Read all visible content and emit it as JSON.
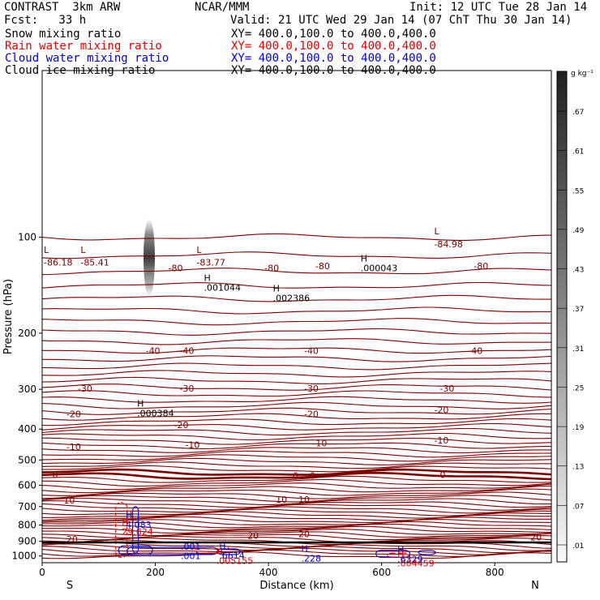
{
  "header": {
    "model": "CONTRAST  3km ARW",
    "center": "NCAR/MMM",
    "init": "Init: 12 UTC Tue 28 Jan 14",
    "fcst": "Fcst:   33 h",
    "valid": "Valid: 21 UTC Wed 29 Jan 14 (07 ChT Thu 30 Jan 14)",
    "fields": [
      {
        "name": "Snow mixing ratio",
        "xy": "XY= 400.0,100.0 to 400.0,400.0",
        "color": "#000000"
      },
      {
        "name": "Rain water mixing ratio",
        "xy": "XY= 400.0,100.0 to 400.0,400.0",
        "color": "#e00000"
      },
      {
        "name": "Cloud water mixing ratio",
        "xy": "XY= 400.0,100.0 to 400.0,400.0",
        "color": "#0000d0"
      },
      {
        "name": "Cloud ice mixing ratio",
        "xy": "XY= 400.0,100.0 to 400.0,400.0",
        "color": "#000000"
      }
    ]
  },
  "chart_data": {
    "type": "cross-section",
    "xlabel": "Distance (km)",
    "ylabel": "Pressure (hPa)",
    "xlim": [
      0,
      900
    ],
    "ylim": [
      1050,
      30
    ],
    "y_scale": "log",
    "xticks": [
      0,
      200,
      400,
      600,
      800
    ],
    "yticks": [
      100,
      200,
      300,
      400,
      500,
      600,
      700,
      800,
      900,
      1000
    ],
    "left_end_label": "S",
    "right_end_label": "N",
    "colorbar": {
      "unit": "g kg⁻¹",
      "ticks": [
        ".67",
        ".61",
        ".55",
        ".49",
        ".43",
        ".37",
        ".31",
        ".25",
        ".19",
        ".13",
        ".07",
        ".01"
      ]
    },
    "colors": {
      "isotherm": "#7a0000",
      "rain": "#e00000",
      "cloud_water": "#0000d0"
    },
    "isotherm_labels": [
      {
        "x": 0,
        "p": 120,
        "text": "-86.18"
      },
      {
        "x": 65,
        "p": 120,
        "text": "-85.41"
      },
      {
        "x": 270,
        "p": 120,
        "text": "-83.77"
      },
      {
        "x": 690,
        "p": 105,
        "text": "-84.98"
      },
      {
        "x": 220,
        "p": 125,
        "text": "-80"
      },
      {
        "x": 390,
        "p": 125,
        "text": "-80"
      },
      {
        "x": 480,
        "p": 123,
        "text": "-80"
      },
      {
        "x": 760,
        "p": 123,
        "text": "-80"
      },
      {
        "x": 180,
        "p": 227,
        "text": "-40"
      },
      {
        "x": 240,
        "p": 227,
        "text": "-40"
      },
      {
        "x": 460,
        "p": 227,
        "text": "-40"
      },
      {
        "x": 750,
        "p": 227,
        "text": "-40"
      },
      {
        "x": 60,
        "p": 298,
        "text": "-30"
      },
      {
        "x": 240,
        "p": 298,
        "text": "-30"
      },
      {
        "x": 460,
        "p": 298,
        "text": "-30"
      },
      {
        "x": 700,
        "p": 298,
        "text": "-30"
      },
      {
        "x": 40,
        "p": 358,
        "text": "-20"
      },
      {
        "x": 230,
        "p": 388,
        "text": "-20"
      },
      {
        "x": 460,
        "p": 358,
        "text": "-20"
      },
      {
        "x": 690,
        "p": 348,
        "text": "-20"
      },
      {
        "x": 40,
        "p": 455,
        "text": "-10"
      },
      {
        "x": 250,
        "p": 448,
        "text": "-10"
      },
      {
        "x": 475,
        "p": 443,
        "text": "-10"
      },
      {
        "x": 690,
        "p": 433,
        "text": "-10"
      },
      {
        "x": 15,
        "p": 556,
        "text": "0"
      },
      {
        "x": 440,
        "p": 559,
        "text": "0"
      },
      {
        "x": 470,
        "p": 559,
        "text": "0"
      },
      {
        "x": 700,
        "p": 556,
        "text": "0"
      },
      {
        "x": 35,
        "p": 668,
        "text": "10"
      },
      {
        "x": 410,
        "p": 665,
        "text": "10"
      },
      {
        "x": 450,
        "p": 665,
        "text": "10"
      },
      {
        "x": 40,
        "p": 887,
        "text": "20"
      },
      {
        "x": 360,
        "p": 862,
        "text": "20"
      },
      {
        "x": 450,
        "p": 852,
        "text": "20"
      },
      {
        "x": 860,
        "p": 872,
        "text": "20"
      }
    ],
    "extrema": [
      {
        "x": 0,
        "p": 112,
        "mark": "L",
        "value": "",
        "color": "#7a0000"
      },
      {
        "x": 65,
        "p": 112,
        "mark": "L",
        "value": "",
        "color": "#7a0000"
      },
      {
        "x": 270,
        "p": 112,
        "mark": "L",
        "value": "",
        "color": "#7a0000"
      },
      {
        "x": 690,
        "p": 98,
        "mark": "L",
        "value": "",
        "color": "#7a0000"
      },
      {
        "x": 283,
        "p": 137,
        "mark": "H",
        "value": ".001044",
        "color": "#000000"
      },
      {
        "x": 405,
        "p": 148,
        "mark": "H",
        "value": ".002386",
        "color": "#000000"
      },
      {
        "x": 560,
        "p": 119,
        "mark": "H",
        "value": ".000043",
        "color": "#000000"
      },
      {
        "x": 165,
        "p": 340,
        "mark": "H",
        "value": ".000384",
        "color": "#000000"
      },
      {
        "x": 145,
        "p": 760,
        "mark": "H",
        "value": "4.083",
        "color": "#0000d0"
      },
      {
        "x": 138,
        "p": 800,
        "mark": "H",
        "value": "29.824",
        "color": "#e00000"
      },
      {
        "x": 310,
        "p": 950,
        "mark": "H",
        "value": ".6614",
        "color": "#0000d0"
      },
      {
        "x": 305,
        "p": 988,
        "mark": "H",
        "value": ".005155",
        "color": "#e00000"
      },
      {
        "x": 455,
        "p": 970,
        "mark": "H",
        "value": ".228",
        "color": "#0000d0"
      },
      {
        "x": 625,
        "p": 975,
        "mark": "H",
        "value": ".6329",
        "color": "#0000d0"
      },
      {
        "x": 625,
        "p": 1005,
        "mark": "H",
        "value": ".004459",
        "color": "#e00000"
      }
    ],
    "cloud_water_labels": [
      {
        "x": 245,
        "p": 935,
        "text": ".001"
      },
      {
        "x": 245,
        "p": 998,
        "text": ".001"
      }
    ]
  }
}
